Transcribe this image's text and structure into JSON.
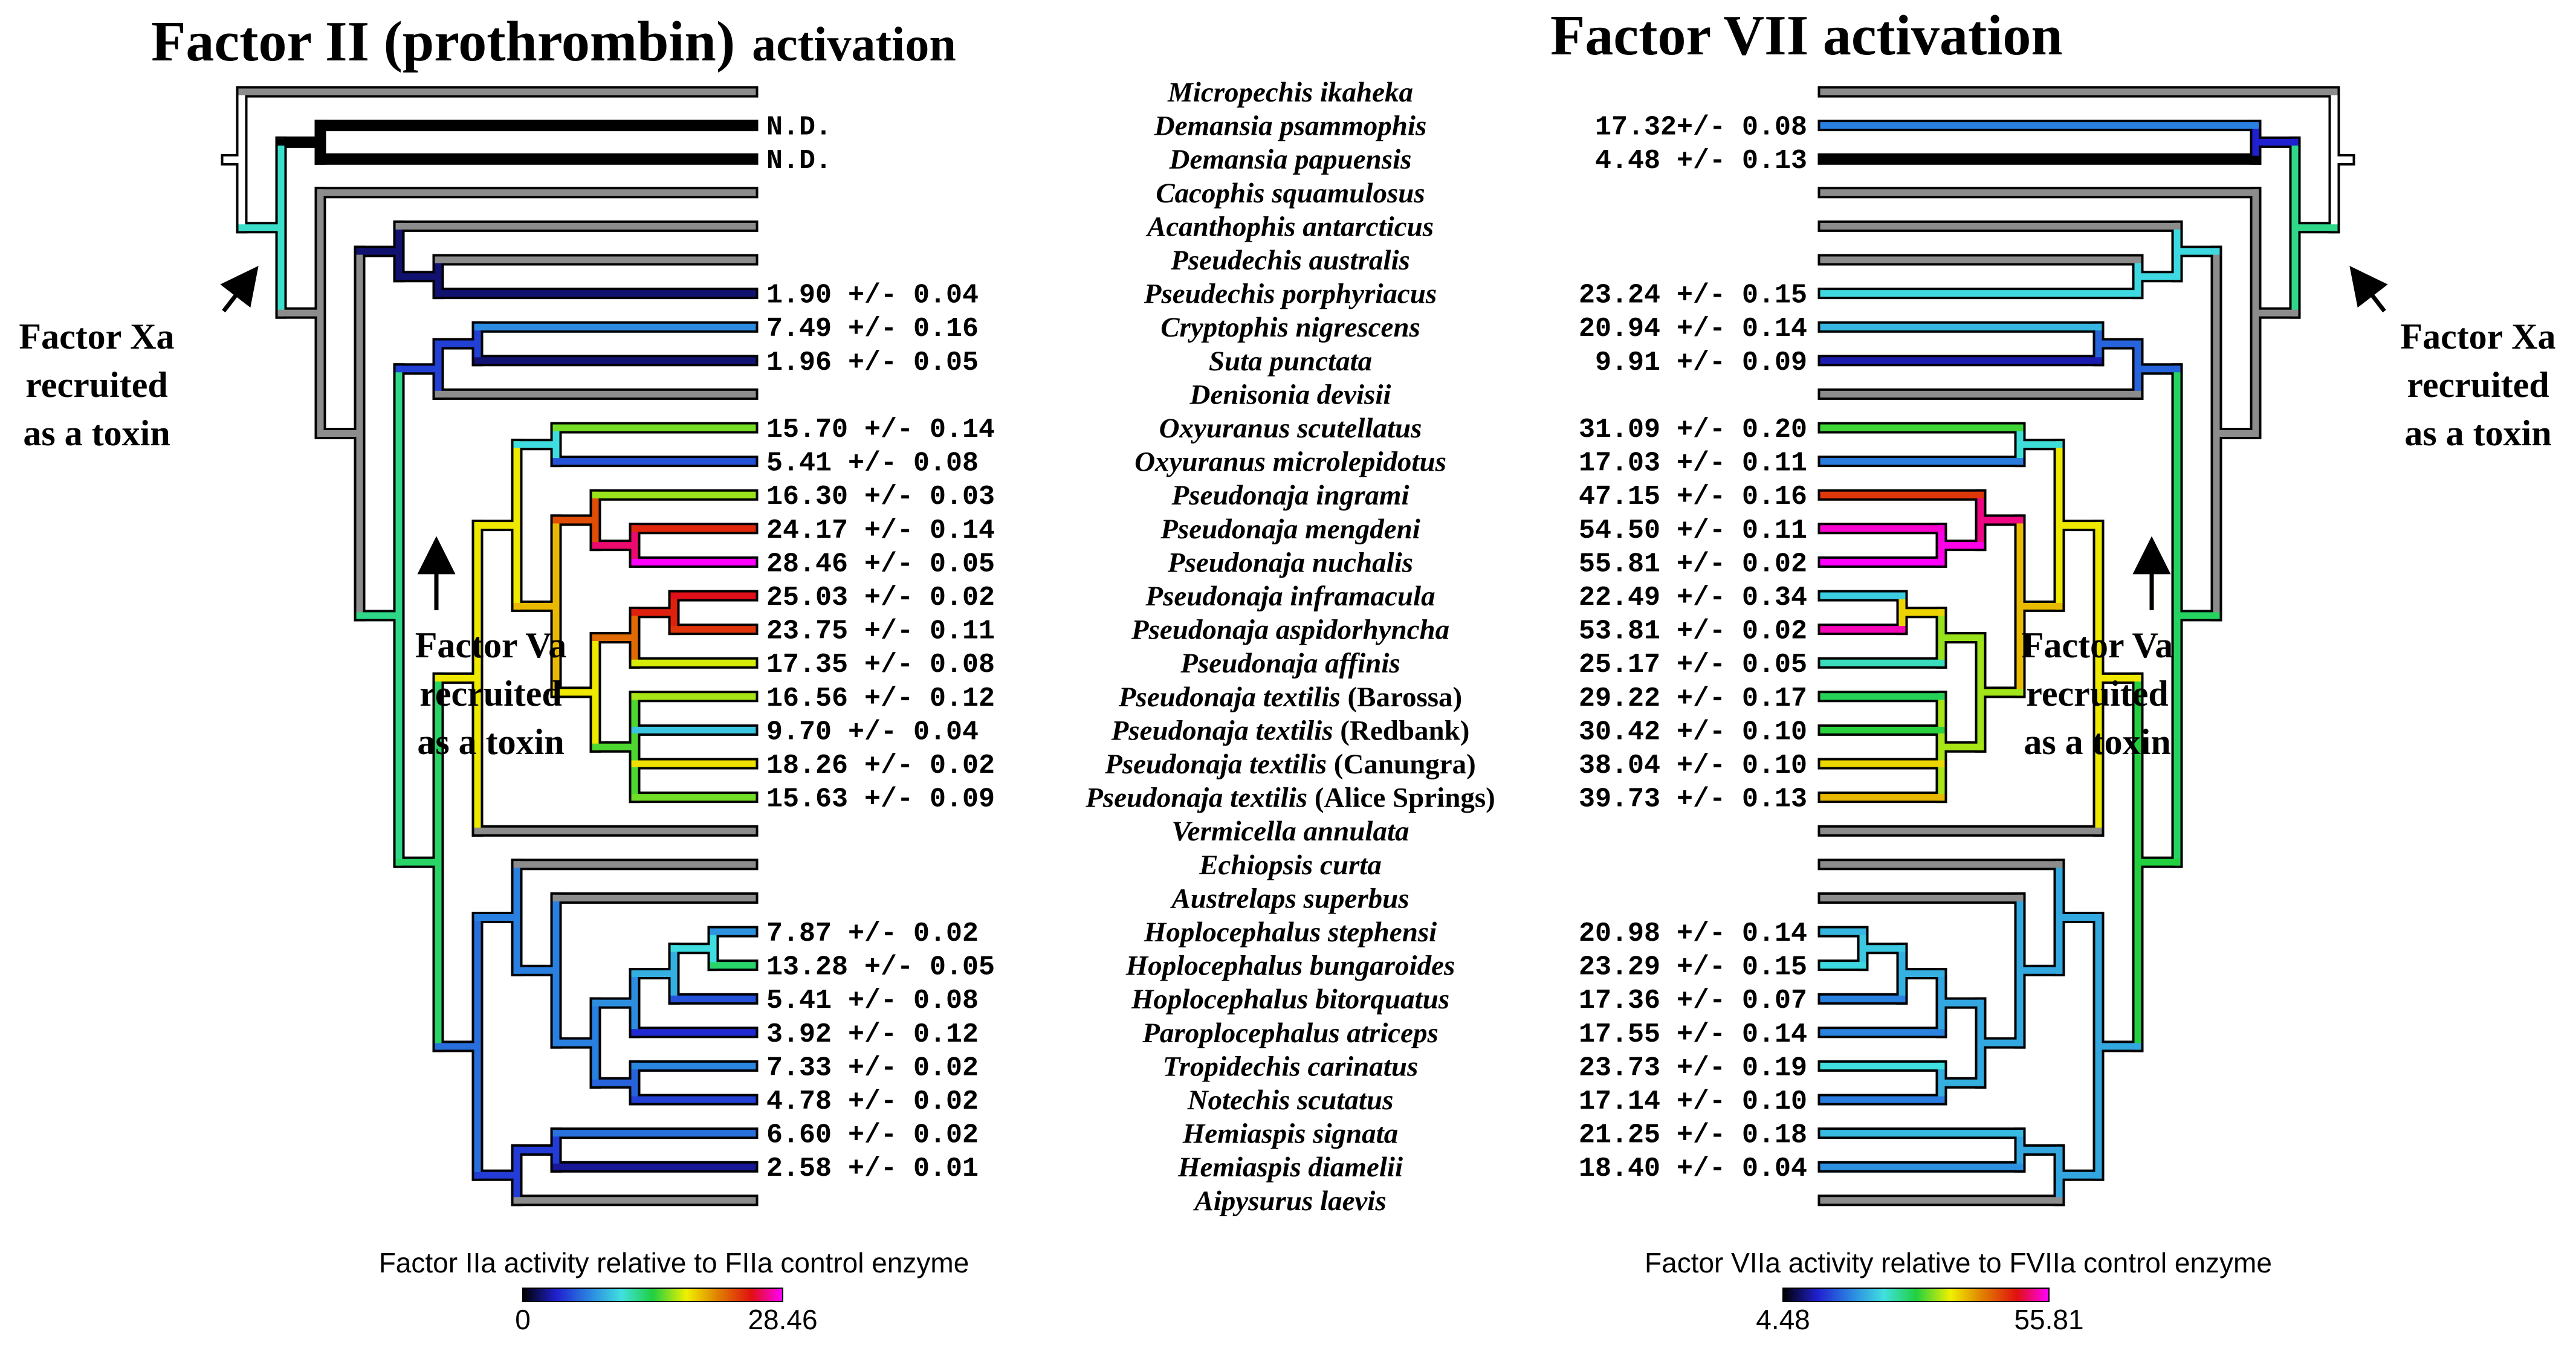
{
  "left_title_bold": "Factor II (prothrombin)",
  "left_title_rest": "activation",
  "right_title": "Factor VII activation",
  "species": [
    {
      "genus": "Micropechis",
      "epithet": "ikaheka",
      "qualifier": ""
    },
    {
      "genus": "Demansia",
      "epithet": "psammophis",
      "qualifier": ""
    },
    {
      "genus": "Demansia",
      "epithet": "papuensis",
      "qualifier": ""
    },
    {
      "genus": "Cacophis",
      "epithet": "squamulosus",
      "qualifier": ""
    },
    {
      "genus": "Acanthophis",
      "epithet": "antarcticus",
      "qualifier": ""
    },
    {
      "genus": "Pseudechis",
      "epithet": "australis",
      "qualifier": ""
    },
    {
      "genus": "Pseudechis",
      "epithet": "porphyriacus",
      "qualifier": ""
    },
    {
      "genus": "Cryptophis",
      "epithet": "nigrescens",
      "qualifier": ""
    },
    {
      "genus": "Suta",
      "epithet": "punctata",
      "qualifier": ""
    },
    {
      "genus": "Denisonia",
      "epithet": "devisii",
      "qualifier": ""
    },
    {
      "genus": "Oxyuranus",
      "epithet": "scutellatus",
      "qualifier": ""
    },
    {
      "genus": "Oxyuranus",
      "epithet": "microlepidotus",
      "qualifier": ""
    },
    {
      "genus": "Pseudonaja",
      "epithet": "ingrami",
      "qualifier": ""
    },
    {
      "genus": "Pseudonaja",
      "epithet": "mengdeni",
      "qualifier": ""
    },
    {
      "genus": "Pseudonaja",
      "epithet": "nuchalis",
      "qualifier": ""
    },
    {
      "genus": "Pseudonaja",
      "epithet": "inframacula",
      "qualifier": ""
    },
    {
      "genus": "Pseudonaja",
      "epithet": "aspidorhyncha",
      "qualifier": ""
    },
    {
      "genus": "Pseudonaja",
      "epithet": "affinis",
      "qualifier": ""
    },
    {
      "genus": "Pseudonaja",
      "epithet": "textilis",
      "qualifier": "(Barossa)"
    },
    {
      "genus": "Pseudonaja",
      "epithet": "textilis",
      "qualifier": "(Redbank)"
    },
    {
      "genus": "Pseudonaja",
      "epithet": "textilis",
      "qualifier": "(Canungra)"
    },
    {
      "genus": "Pseudonaja",
      "epithet": "textilis",
      "qualifier": "(Alice Springs)"
    },
    {
      "genus": "Vermicella",
      "epithet": "annulata",
      "qualifier": ""
    },
    {
      "genus": "Echiopsis",
      "epithet": "curta",
      "qualifier": ""
    },
    {
      "genus": "Austrelaps",
      "epithet": "superbus",
      "qualifier": ""
    },
    {
      "genus": "Hoplocephalus",
      "epithet": "stephensi",
      "qualifier": ""
    },
    {
      "genus": "Hoplocephalus",
      "epithet": "bungaroides",
      "qualifier": ""
    },
    {
      "genus": "Hoplocephalus",
      "epithet": "bitorquatus",
      "qualifier": ""
    },
    {
      "genus": "Paroplocephalus",
      "epithet": "atriceps",
      "qualifier": ""
    },
    {
      "genus": "Tropidechis",
      "epithet": "carinatus",
      "qualifier": ""
    },
    {
      "genus": "Notechis",
      "epithet": "scutatus",
      "qualifier": ""
    },
    {
      "genus": "Hemiaspis",
      "epithet": "signata",
      "qualifier": ""
    },
    {
      "genus": "Hemiaspis",
      "epithet": "diamelii",
      "qualifier": ""
    },
    {
      "genus": "Aipysurus",
      "epithet": "laevis",
      "qualifier": ""
    }
  ],
  "fII_values": [
    "",
    "N.D.",
    "N.D.",
    "",
    "",
    "",
    "1.90 +/- 0.04",
    "7.49 +/- 0.16",
    "1.96 +/- 0.05",
    "",
    "15.70 +/- 0.14",
    "5.41 +/- 0.08",
    "16.30 +/- 0.03",
    "24.17 +/- 0.14",
    "28.46 +/- 0.05",
    "25.03 +/- 0.02",
    "23.75 +/- 0.11",
    "17.35 +/- 0.08",
    "16.56 +/- 0.12",
    "9.70 +/- 0.04",
    "18.26 +/- 0.02",
    "15.63 +/- 0.09",
    "",
    "",
    "",
    "7.87 +/- 0.02",
    "13.28 +/- 0.05",
    "5.41 +/- 0.08",
    "3.92 +/- 0.12",
    "7.33 +/- 0.02",
    "4.78 +/- 0.02",
    "6.60 +/- 0.02",
    "2.58 +/- 0.01",
    ""
  ],
  "fVII_values": [
    "",
    "17.32+/- 0.08",
    "4.48 +/- 0.13",
    "",
    "",
    "",
    "23.24 +/- 0.15",
    "20.94 +/- 0.14",
    "9.91 +/- 0.09",
    "",
    "31.09 +/- 0.20",
    "17.03 +/- 0.11",
    "47.15 +/- 0.16",
    "54.50 +/- 0.11",
    "55.81 +/- 0.02",
    "22.49 +/- 0.34",
    "53.81 +/- 0.02",
    "25.17 +/- 0.05",
    "29.22 +/- 0.17",
    "30.42 +/- 0.10",
    "38.04 +/- 0.10",
    "39.73 +/- 0.13",
    "",
    "",
    "",
    "20.98 +/- 0.14",
    "23.29 +/- 0.15",
    "17.36 +/- 0.07",
    "17.55 +/- 0.14",
    "23.73 +/- 0.19",
    "17.14 +/- 0.10",
    "21.25 +/- 0.18",
    "18.40 +/- 0.04",
    ""
  ],
  "annotations": {
    "left_xa": [
      "Factor Xa",
      "recruited",
      "as a toxin"
    ],
    "left_va": [
      "Factor Va",
      "recruited",
      "as a toxin"
    ],
    "right_xa": [
      "Factor Xa",
      "recruited",
      "as a toxin"
    ],
    "right_va": [
      "Factor Va",
      "recruited",
      "as a toxin"
    ]
  },
  "legend_left": {
    "label": "Factor IIa activity relative to FIIa control enzyme",
    "min": "0",
    "max": "28.46"
  },
  "legend_right": {
    "label": "Factor VIIa activity relative to FVIIa control enzyme",
    "min": "4.48",
    "max": "55.81"
  },
  "colors": {
    "ramp": [
      "#000000",
      "#2020d0",
      "#2a80e0",
      "#40e0e0",
      "#20d040",
      "#f0f000",
      "#e08000",
      "#e01010",
      "#ff00ff"
    ],
    "grey_branch": "#8c8c8c",
    "open_branch": "#ffffff",
    "outline": "#000000"
  }
}
